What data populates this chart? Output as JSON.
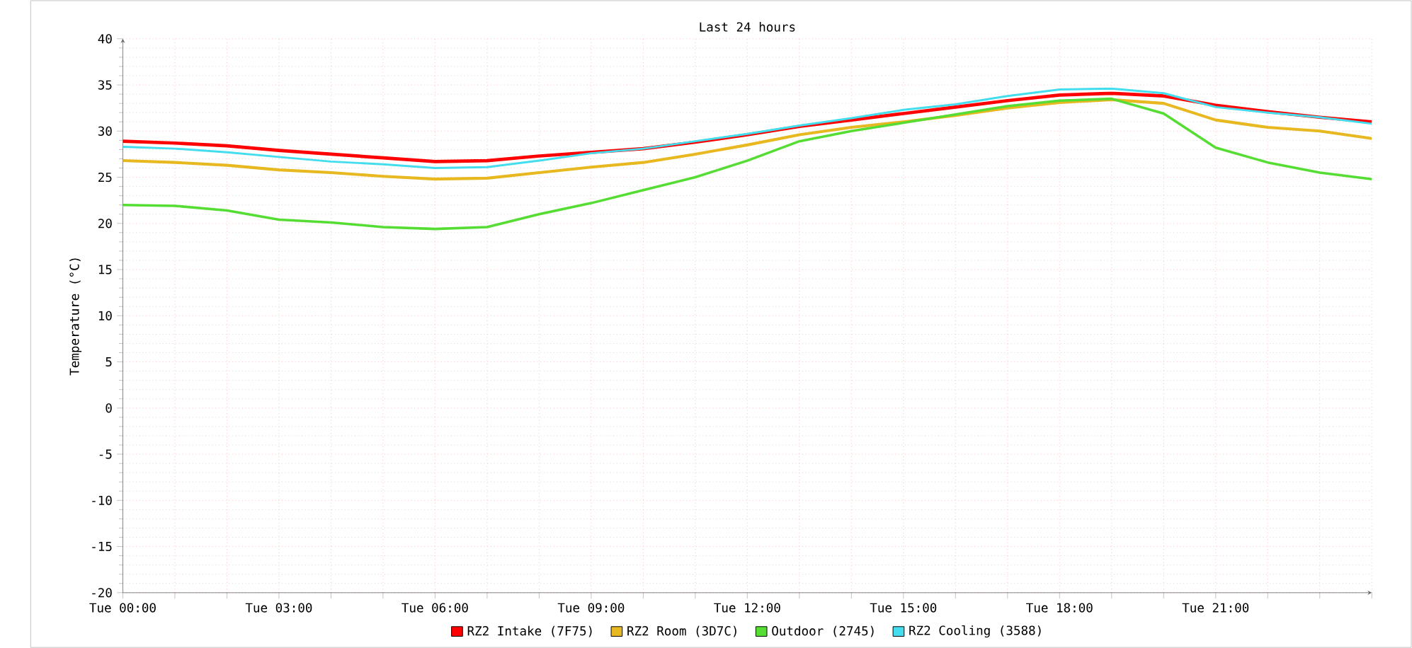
{
  "chart_data": {
    "type": "line",
    "title": "Last 24 hours",
    "ylabel": "Temperature (°C)",
    "categories": [
      "Tue 00:00",
      null,
      null,
      "Tue 03:00",
      null,
      null,
      "Tue 06:00",
      null,
      null,
      "Tue 09:00",
      null,
      null,
      "Tue 12:00",
      null,
      null,
      "Tue 15:00",
      null,
      null,
      "Tue 18:00",
      null,
      null,
      "Tue 21:00",
      null,
      null,
      null
    ],
    "ylim": [
      -20,
      40
    ],
    "yticks": [
      -20,
      -15,
      -10,
      -5,
      0,
      5,
      10,
      15,
      20,
      25,
      30,
      35,
      40
    ],
    "grid": true,
    "legend": "bottom",
    "marker": "none",
    "line_style": "solid",
    "series": [
      {
        "name": "RZ2 Intake (7F75)",
        "color": "#ff0000",
        "values": [
          28.9,
          28.7,
          28.4,
          27.9,
          27.5,
          27.1,
          26.7,
          26.8,
          27.3,
          27.7,
          28.1,
          28.8,
          29.6,
          30.5,
          31.2,
          31.9,
          32.6,
          33.3,
          33.9,
          34.1,
          33.8,
          32.8,
          32.1,
          31.5,
          31.0
        ]
      },
      {
        "name": "RZ2 Room (3D7C)",
        "color": "#e8b820",
        "values": [
          26.8,
          26.6,
          26.3,
          25.8,
          25.5,
          25.1,
          24.8,
          24.9,
          25.5,
          26.1,
          26.6,
          27.5,
          28.5,
          29.6,
          30.4,
          31.0,
          31.7,
          32.5,
          33.1,
          33.4,
          33.0,
          31.2,
          30.4,
          30.0,
          29.2
        ]
      },
      {
        "name": "Outdoor (2745)",
        "color": "#55dd33",
        "values": [
          22.0,
          21.9,
          21.4,
          20.4,
          20.1,
          19.6,
          19.4,
          19.6,
          21.0,
          22.2,
          23.6,
          25.0,
          26.8,
          28.9,
          30.0,
          30.9,
          31.8,
          32.7,
          33.3,
          33.5,
          31.9,
          28.2,
          26.6,
          25.5,
          24.8
        ]
      },
      {
        "name": "RZ2 Cooling (3588)",
        "color": "#44ddee",
        "values": [
          28.3,
          28.1,
          27.7,
          27.2,
          26.7,
          26.4,
          26.0,
          26.1,
          26.8,
          27.6,
          28.1,
          28.9,
          29.7,
          30.6,
          31.4,
          32.3,
          32.9,
          33.8,
          34.5,
          34.6,
          34.1,
          32.6,
          32.0,
          31.5,
          30.8
        ]
      }
    ]
  }
}
